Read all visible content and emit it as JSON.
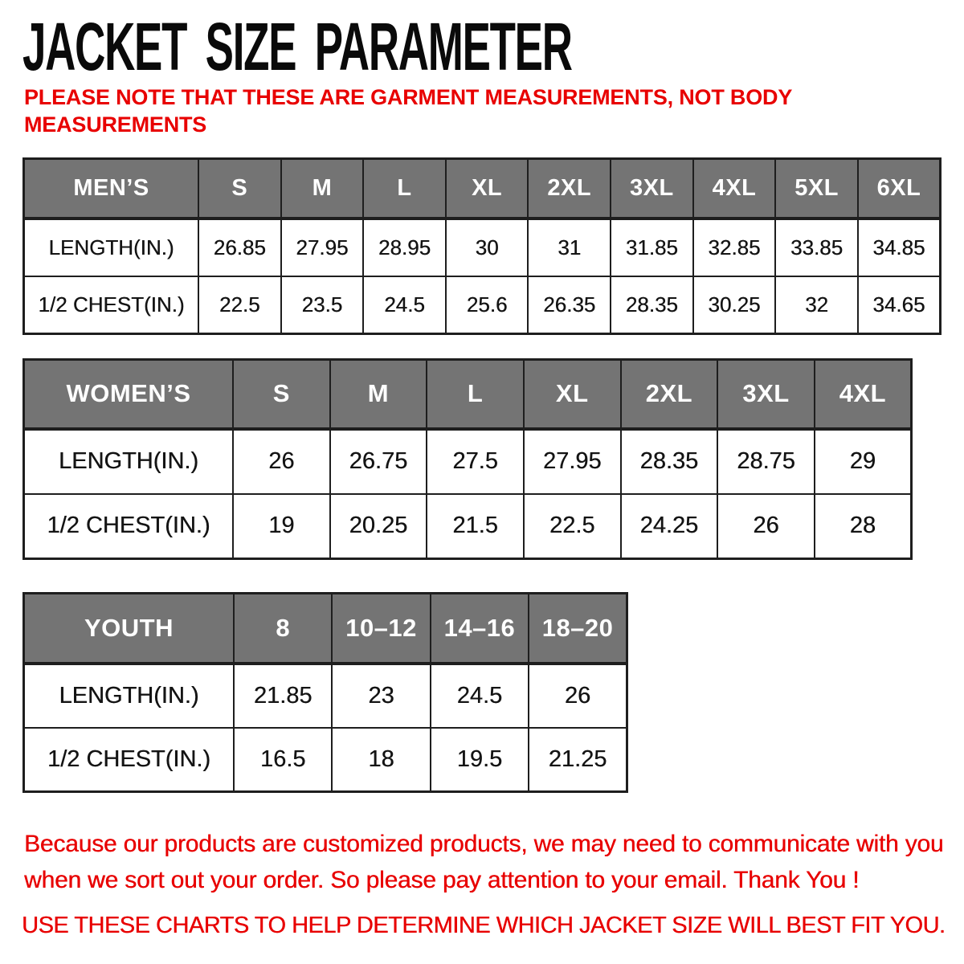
{
  "title": "JACKET SIZE PARAMETER",
  "note_lines": [
    "PLEASE NOTE THAT THESE ARE GARMENT MEASUREMENTS, NOT BODY",
    "MEASUREMENTS"
  ],
  "chart_data": [
    {
      "type": "table",
      "id": "mens",
      "columns": [
        "MEN’S",
        "S",
        "M",
        "L",
        "XL",
        "2XL",
        "3XL",
        "4XL",
        "5XL",
        "6XL"
      ],
      "rows": [
        [
          "LENGTH(IN.)",
          "26.85",
          "27.95",
          "28.95",
          "30",
          "31",
          "31.85",
          "32.85",
          "33.85",
          "34.85"
        ],
        [
          "1/2 CHEST(IN.)",
          "22.5",
          "23.5",
          "24.5",
          "25.6",
          "26.35",
          "28.35",
          "30.25",
          "32",
          "34.65"
        ]
      ]
    },
    {
      "type": "table",
      "id": "womens",
      "columns": [
        "WOMEN’S",
        "S",
        "M",
        "L",
        "XL",
        "2XL",
        "3XL",
        "4XL"
      ],
      "rows": [
        [
          "LENGTH(IN.)",
          "26",
          "26.75",
          "27.5",
          "27.95",
          "28.35",
          "28.75",
          "29"
        ],
        [
          "1/2 CHEST(IN.)",
          "19",
          "20.25",
          "21.5",
          "22.5",
          "24.25",
          "26",
          "28"
        ]
      ]
    },
    {
      "type": "table",
      "id": "youth",
      "columns": [
        "YOUTH",
        "8",
        "10–12",
        "14–16",
        "18–20"
      ],
      "rows": [
        [
          "LENGTH(IN.)",
          "21.85",
          "23",
          "24.5",
          "26"
        ],
        [
          "1/2 CHEST(IN.)",
          "16.5",
          "18",
          "19.5",
          "21.25"
        ]
      ]
    }
  ],
  "footer": {
    "paragraph_lines": [
      "Because our products are customized products, we may need to communicate with you",
      "when we sort out your order. So please pay attention to your email. Thank You !"
    ],
    "final_line": "USE THESE CHARTS TO HELP DETERMINE WHICH JACKET SIZE WILL BEST FIT YOU."
  },
  "colors": {
    "accent_red": "#e80000",
    "header_gray": "#747474",
    "border_dark": "#1e1e1e",
    "text_black": "#141414",
    "background": "#ffffff"
  }
}
